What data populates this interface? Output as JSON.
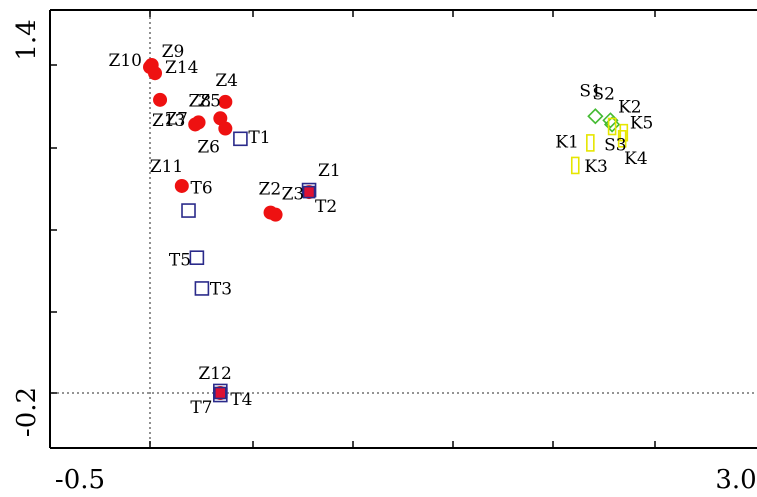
{
  "chart_data": {
    "type": "scatter",
    "title": "",
    "xlabel": "",
    "ylabel": "",
    "xlim": [
      -0.5,
      3.0
    ],
    "ylim": [
      -0.2,
      1.4
    ],
    "x_tick_labels": [
      "-0.5",
      "3.0"
    ],
    "y_tick_labels": [
      "1.4",
      "-0.2"
    ],
    "reference_lines": {
      "x": -0.5,
      "y": -0.2
    },
    "series": [
      {
        "marker": "filled-circle",
        "color": "#ee1111",
        "points": [
          {
            "label": "Z9",
            "x": -0.49,
            "y": 1.4
          },
          {
            "label": "Z10",
            "x": -0.5,
            "y": 1.39
          },
          {
            "label": "Z14",
            "x": -0.47,
            "y": 1.36
          },
          {
            "label": "Z13",
            "x": -0.44,
            "y": 1.23
          },
          {
            "label": "Z8",
            "x": -0.21,
            "y": 1.12
          },
          {
            "label": "Z7",
            "x": -0.23,
            "y": 1.11
          },
          {
            "label": "Z4",
            "x": -0.05,
            "y": 1.22
          },
          {
            "label": "Z5",
            "x": -0.08,
            "y": 1.14
          },
          {
            "label": "Z6",
            "x": -0.05,
            "y": 1.09
          },
          {
            "label": "Z11",
            "x": -0.31,
            "y": 0.81
          },
          {
            "label": "Z2",
            "x": 0.22,
            "y": 0.68
          },
          {
            "label": "Z3",
            "x": 0.25,
            "y": 0.67
          },
          {
            "label": "Z1",
            "x": 0.45,
            "y": 0.78
          },
          {
            "label": "Z12",
            "x": -0.08,
            "y": -0.2
          }
        ]
      },
      {
        "marker": "open-square",
        "color": "#2a2a8a",
        "points": [
          {
            "label": "T1",
            "x": 0.04,
            "y": 1.04
          },
          {
            "label": "T2",
            "x": 0.45,
            "y": 0.79
          },
          {
            "label": "T6",
            "x": -0.27,
            "y": 0.69
          },
          {
            "label": "T5",
            "x": -0.22,
            "y": 0.46
          },
          {
            "label": "T3",
            "x": -0.19,
            "y": 0.31
          },
          {
            "label": "T7",
            "x": -0.08,
            "y": -0.19
          },
          {
            "label": "T4",
            "x": -0.08,
            "y": -0.21
          }
        ]
      },
      {
        "marker": "open-diamond",
        "color": "#44bb33",
        "points": [
          {
            "label": "S1",
            "x": 2.16,
            "y": 1.15
          },
          {
            "label": "S2",
            "x": 2.25,
            "y": 1.13
          },
          {
            "label": "S3",
            "x": 2.26,
            "y": 1.11
          }
        ]
      },
      {
        "marker": "open-rectangle",
        "color": "#e6e600",
        "points": [
          {
            "label": "K1",
            "x": 2.04,
            "y": 0.91
          },
          {
            "label": "K3",
            "x": 2.13,
            "y": 1.02
          },
          {
            "label": "K2",
            "x": 2.26,
            "y": 1.1
          },
          {
            "label": "K5",
            "x": 2.33,
            "y": 1.07
          },
          {
            "label": "K4",
            "x": 2.32,
            "y": 1.04
          }
        ]
      }
    ]
  }
}
